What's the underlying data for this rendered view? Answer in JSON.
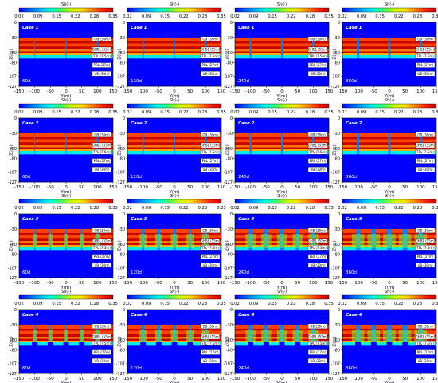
{
  "figure": {
    "colorbar": {
      "title": "Sh(-)",
      "ticks": [
        "0.02",
        "0.09",
        "0.15",
        "0.22",
        "0.28",
        "0.35"
      ],
      "colors": [
        "#0000ff",
        "#0060ff",
        "#00b4ff",
        "#00ffe0",
        "#40ff60",
        "#c8ff00",
        "#ffe000",
        "#ff8000",
        "#ff2000",
        "#c80000"
      ]
    },
    "axis": {
      "xlabel": "Y(m)",
      "ylabel": "Z(m)",
      "xticks": [
        "-150",
        "-100",
        "-50",
        "0",
        "50",
        "100",
        "150"
      ],
      "yticks": [
        "0",
        "-30",
        "-60",
        "-80",
        "-107",
        "-127"
      ]
    },
    "layers": [
      {
        "label": "OB (30m)",
        "y": -33
      },
      {
        "label": "GHBL (55m)",
        "y": -54
      },
      {
        "label": "TPL (7.5m)",
        "y": -67
      },
      {
        "label": "PBL (27m)",
        "y": -85
      },
      {
        "label": "UB (30m)",
        "y": -102
      }
    ],
    "rows": [
      {
        "case": "Case 1",
        "times": [
          "60d",
          "120d",
          "240d",
          "360d"
        ]
      },
      {
        "case": "Case 2",
        "times": [
          "60d",
          "120d",
          "240d",
          "360d"
        ]
      },
      {
        "case": "Case 3",
        "times": [
          "60d",
          "120d",
          "240d",
          "360d"
        ]
      },
      {
        "case": "Case 4",
        "times": [
          "60d",
          "120d",
          "240d",
          "360d"
        ]
      }
    ]
  },
  "chart_data": {
    "type": "heatmap",
    "quantity": "Sh(-)",
    "colorbar_range": [
      0.02,
      0.35
    ],
    "xlabel": "Y(m)",
    "ylabel": "Z(m)",
    "xlim": [
      -150,
      150
    ],
    "ylim": [
      -127,
      0
    ],
    "cases": [
      "Case 1",
      "Case 2",
      "Case 3",
      "Case 4"
    ],
    "times": [
      "60d",
      "120d",
      "240d",
      "360d"
    ],
    "vertical_profile": [
      {
        "z_top": 0,
        "z_bottom": -30,
        "sh": 0.02
      },
      {
        "z_top": -30,
        "z_bottom": -38,
        "sh": 0.3
      },
      {
        "z_top": -38,
        "z_bottom": -42,
        "sh": 0.35
      },
      {
        "z_top": -42,
        "z_bottom": -48,
        "sh": 0.3
      },
      {
        "z_top": -48,
        "z_bottom": -54,
        "sh": 0.35
      },
      {
        "z_top": -54,
        "z_bottom": -58,
        "sh": 0.28
      },
      {
        "z_top": -58,
        "z_bottom": -62,
        "sh": 0.35
      },
      {
        "z_top": -62,
        "z_bottom": -65,
        "sh": 0.26
      },
      {
        "z_top": -65,
        "z_bottom": -72,
        "sh": 0.12
      },
      {
        "z_top": -72,
        "z_bottom": -127,
        "sh": 0.02
      }
    ],
    "wells_y": {
      "Case 1": [
        -100,
        0,
        100
      ],
      "Case 2": [
        -100,
        0,
        100
      ],
      "Case 3": [
        -100,
        -50,
        0,
        50,
        100
      ],
      "Case 4": [
        -100,
        -50,
        0,
        50,
        100
      ]
    }
  }
}
